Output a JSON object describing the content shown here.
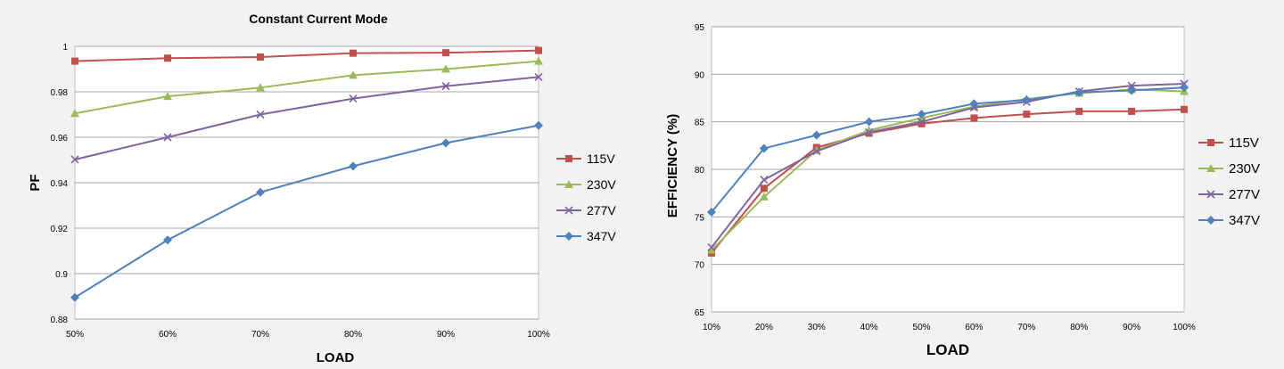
{
  "charts": [
    {
      "chart_data": {
        "type": "line",
        "title": "Constant Current Mode",
        "xlabel": "LOAD",
        "ylabel": "PF",
        "categories": [
          "50%",
          "60%",
          "70%",
          "80%",
          "90%",
          "100%"
        ],
        "ylim": [
          0.88,
          1.0
        ],
        "yticks": [
          "0.88",
          "0.9",
          "0.92",
          "0.94",
          "0.96",
          "0.98",
          "1"
        ],
        "grid": true,
        "legend": "right",
        "series": [
          {
            "name": "115V",
            "marker": "square",
            "color": "#c0504d",
            "values": [
              0.9935,
              0.9948,
              0.9953,
              0.997,
              0.9972,
              0.9982
            ]
          },
          {
            "name": "230V",
            "marker": "triangle",
            "color": "#9bbb59",
            "values": [
              0.9705,
              0.978,
              0.9818,
              0.9873,
              0.99,
              0.9935
            ]
          },
          {
            "name": "277V",
            "marker": "x",
            "color": "#8064a2",
            "values": [
              0.9502,
              0.96,
              0.97,
              0.977,
              0.9825,
              0.9865
            ]
          },
          {
            "name": "347V",
            "marker": "diamond",
            "color": "#4f81bd",
            "values": [
              0.8895,
              0.9148,
              0.9358,
              0.9473,
              0.9575,
              0.9652
            ]
          }
        ]
      }
    },
    {
      "chart_data": {
        "type": "line",
        "title": "",
        "xlabel": "LOAD",
        "ylabel": "EFFICIENCY (%)",
        "categories": [
          "10%",
          "20%",
          "30%",
          "40%",
          "50%",
          "60%",
          "70%",
          "80%",
          "90%",
          "100%"
        ],
        "ylim": [
          65,
          95
        ],
        "yticks": [
          "65",
          "70",
          "75",
          "80",
          "85",
          "90",
          "95"
        ],
        "grid": true,
        "legend": "right",
        "series": [
          {
            "name": "115V",
            "marker": "square",
            "color": "#c0504d",
            "values": [
              71.2,
              78.0,
              82.3,
              83.8,
              84.8,
              85.4,
              85.8,
              86.1,
              86.1,
              86.3
            ]
          },
          {
            "name": "230V",
            "marker": "triangle",
            "color": "#9bbb59",
            "values": [
              71.5,
              77.1,
              82.0,
              84.1,
              85.4,
              86.6,
              87.4,
              88.0,
              88.4,
              88.2
            ]
          },
          {
            "name": "277V",
            "marker": "x",
            "color": "#8064a2",
            "values": [
              71.8,
              78.9,
              81.9,
              83.9,
              85.0,
              86.5,
              87.1,
              88.2,
              88.8,
              89.0
            ]
          },
          {
            "name": "347V",
            "marker": "diamond",
            "color": "#4f81bd",
            "values": [
              75.5,
              82.2,
              83.6,
              85.0,
              85.8,
              86.9,
              87.3,
              88.1,
              88.3,
              88.6
            ]
          }
        ]
      }
    }
  ]
}
